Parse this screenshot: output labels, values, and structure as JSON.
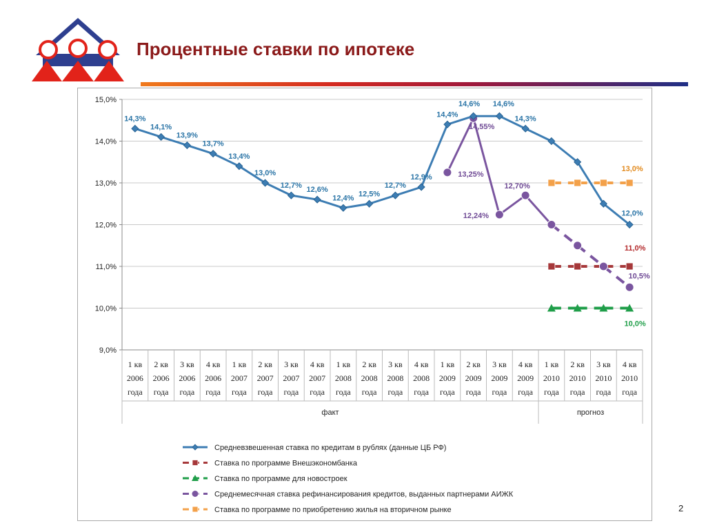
{
  "slide": {
    "title": "Процентные ставки по ипотеке",
    "page_number": "2"
  },
  "logo": {
    "icon": "house-people-logo"
  },
  "colors": {
    "title": "#8b1a1a",
    "series_cbr": "#3d7db3",
    "series_veb": "#a6383a",
    "series_new": "#1f9e49",
    "series_aijk": "#7a559f",
    "series_secondary": "#f3a14a",
    "grid": "#c8c8c8"
  },
  "chart_data": {
    "type": "line",
    "title": "",
    "xlabel": "",
    "ylabel": "",
    "ylim": [
      9.0,
      15.0
    ],
    "y_ticks": [
      "9,0%",
      "10,0%",
      "11,0%",
      "12,0%",
      "13,0%",
      "14,0%",
      "15,0%"
    ],
    "y_tick_values": [
      9,
      10,
      11,
      12,
      13,
      14,
      15
    ],
    "categories": [
      [
        "1 кв",
        "2006",
        "года"
      ],
      [
        "2 кв",
        "2006",
        "года"
      ],
      [
        "3 кв",
        "2006",
        "года"
      ],
      [
        "4 кв",
        "2006",
        "года"
      ],
      [
        "1 кв",
        "2007",
        "года"
      ],
      [
        "2 кв",
        "2007",
        "года"
      ],
      [
        "3 кв",
        "2007",
        "года"
      ],
      [
        "4 кв",
        "2007",
        "года"
      ],
      [
        "1 кв",
        "2008",
        "года"
      ],
      [
        "2 кв",
        "2008",
        "года"
      ],
      [
        "3 кв",
        "2008",
        "года"
      ],
      [
        "4 кв",
        "2008",
        "года"
      ],
      [
        "1 кв",
        "2009",
        "года"
      ],
      [
        "2 кв",
        "2009",
        "года"
      ],
      [
        "3 кв",
        "2009",
        "года"
      ],
      [
        "4 кв",
        "2009",
        "года"
      ],
      [
        "1 кв",
        "2010",
        "года"
      ],
      [
        "2 кв",
        "2010",
        "года"
      ],
      [
        "3 кв",
        "2010",
        "года"
      ],
      [
        "4 кв",
        "2010",
        "года"
      ]
    ],
    "groups": [
      {
        "label": "факт",
        "start": 0,
        "end": 15
      },
      {
        "label": "прогноз",
        "start": 16,
        "end": 19
      }
    ],
    "series": [
      {
        "name": "Средневзвешенная ставка по кредитам в рублях (данные ЦБ РФ)",
        "key": "cbr",
        "marker": "diamond",
        "values": [
          14.3,
          14.1,
          13.9,
          13.7,
          13.4,
          13.0,
          12.7,
          12.6,
          12.4,
          12.5,
          12.7,
          12.9,
          14.4,
          14.6,
          14.6,
          14.3,
          14.0,
          13.5,
          12.5,
          12.0
        ],
        "labels": [
          "14,3%",
          "14,1%",
          "13,9%",
          "13,7%",
          "13,4%",
          "13,0%",
          "12,7%",
          "12,6%",
          "12,4%",
          "12,5%",
          "12,7%",
          "12,9%",
          "14,4%",
          "14,6%",
          "14,6%",
          "14,3%",
          "",
          "",
          "",
          "12,0%"
        ]
      },
      {
        "name": "Ставка по программе Внешэкономбанка",
        "key": "veb",
        "marker": "square",
        "values": [
          null,
          null,
          null,
          null,
          null,
          null,
          null,
          null,
          null,
          null,
          null,
          null,
          null,
          null,
          null,
          null,
          11.0,
          11.0,
          11.0,
          11.0
        ],
        "labels": [
          "",
          "",
          "",
          "",
          "",
          "",
          "",
          "",
          "",
          "",
          "",
          "",
          "",
          "",
          "",
          "",
          "",
          "",
          "",
          "11,0%"
        ]
      },
      {
        "name": "Ставка по программе для новостроек",
        "key": "new",
        "marker": "triangle",
        "values": [
          null,
          null,
          null,
          null,
          null,
          null,
          null,
          null,
          null,
          null,
          null,
          null,
          null,
          null,
          null,
          null,
          10.0,
          10.0,
          10.0,
          10.0
        ],
        "labels": [
          "",
          "",
          "",
          "",
          "",
          "",
          "",
          "",
          "",
          "",
          "",
          "",
          "",
          "",
          "",
          "",
          "",
          "",
          "",
          "10,0%"
        ]
      },
      {
        "name": "Среднемесячная ставка рефинансирования кредитов, выданных партнерами АИЖК",
        "key": "aijk",
        "marker": "circle",
        "values": [
          null,
          null,
          null,
          null,
          null,
          null,
          null,
          null,
          null,
          null,
          null,
          null,
          13.25,
          14.55,
          12.24,
          12.7,
          12.0,
          11.5,
          11.0,
          10.5
        ],
        "labels": [
          "",
          "",
          "",
          "",
          "",
          "",
          "",
          "",
          "",
          "",
          "",
          "",
          "13,25%",
          "14,55%",
          "12,24%",
          "12,70%",
          "",
          "",
          "",
          "10,5%"
        ]
      },
      {
        "name": "Ставка по программе по приобретению жилья на вторичном рынке",
        "key": "secondary",
        "marker": "square",
        "values": [
          null,
          null,
          null,
          null,
          null,
          null,
          null,
          null,
          null,
          null,
          null,
          null,
          null,
          null,
          null,
          null,
          13.0,
          13.0,
          13.0,
          13.0
        ],
        "labels": [
          "",
          "",
          "",
          "",
          "",
          "",
          "",
          "",
          "",
          "",
          "",
          "",
          "",
          "",
          "",
          "",
          "",
          "",
          "",
          "13,0%"
        ]
      }
    ],
    "legend_position": "bottom"
  }
}
